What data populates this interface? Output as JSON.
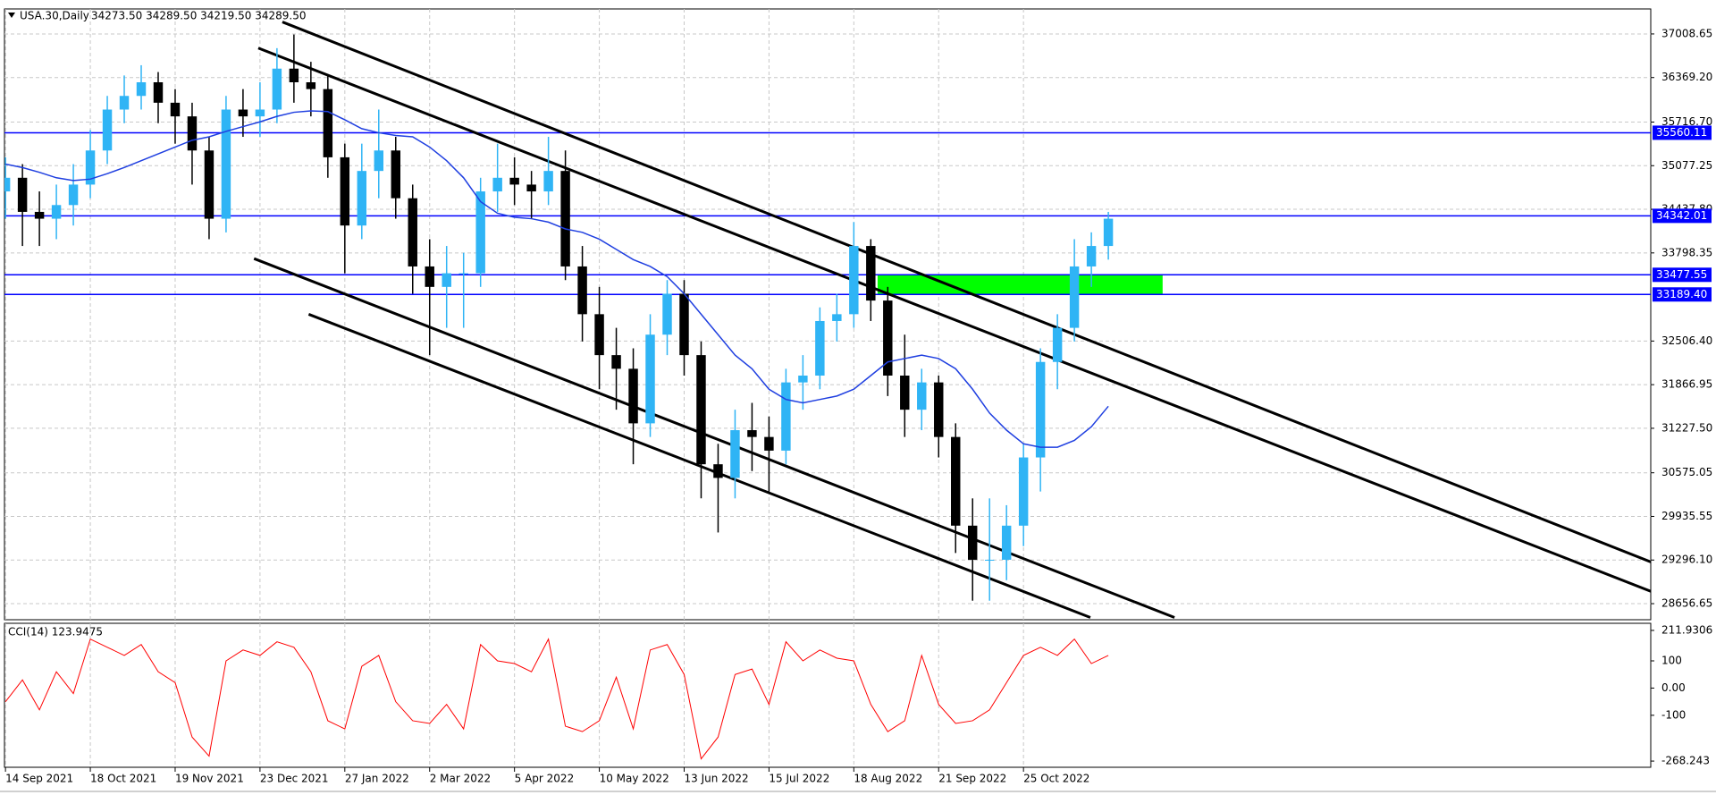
{
  "header": {
    "symbol": "USA.30,Daily",
    "ohlc": "34273.50 34289.50 34219.50 34289.50",
    "indicator": "CCI(14) 123.9475"
  },
  "chart_data": [
    {
      "type": "candlestick",
      "categories": [
        "14 Sep 2021",
        null,
        null,
        null,
        null,
        "18 Oct 2021",
        null,
        null,
        null,
        null,
        "19 Nov 2021",
        null,
        null,
        null,
        null,
        "23 Dec 2021",
        null,
        null,
        null,
        null,
        "27 Jan 2022",
        null,
        null,
        null,
        null,
        "2 Mar 2022",
        null,
        null,
        null,
        null,
        "5 Apr 2022",
        null,
        null,
        null,
        null,
        "10 May 2022",
        null,
        null,
        null,
        null,
        "13 Jun 2022",
        null,
        null,
        null,
        null,
        "15 Jul 2022",
        null,
        null,
        null,
        null,
        "18 Aug 2022",
        null,
        null,
        null,
        null,
        "21 Sep 2022",
        null,
        null,
        null,
        null,
        "25 Oct 2022",
        null,
        null,
        null,
        null,
        null
      ],
      "open": [
        34700,
        34900,
        34400,
        34300,
        34500,
        34800,
        35300,
        35900,
        36100,
        36300,
        36000,
        35800,
        35300,
        34300,
        35900,
        35800,
        35900,
        36500,
        36300,
        36200,
        35200,
        34200,
        35000,
        35300,
        34600,
        33600,
        33300,
        33500,
        33500,
        34700,
        34900,
        34800,
        34700,
        35000,
        33600,
        32900,
        32300,
        32100,
        31300,
        32600,
        33200,
        32300,
        30700,
        30500,
        31200,
        31100,
        30900,
        31900,
        32000,
        32800,
        32900,
        33900,
        33100,
        32000,
        31500,
        31900,
        31100,
        29800,
        29300,
        29300,
        29800,
        30800,
        32200,
        32700,
        33600,
        33900
      ],
      "high": [
        35200,
        35100,
        34700,
        34800,
        35100,
        35600,
        36100,
        36400,
        36550,
        36450,
        36200,
        36000,
        35500,
        36100,
        36200,
        36300,
        36800,
        37000,
        36600,
        36400,
        35400,
        35400,
        35900,
        35500,
        34800,
        34000,
        33900,
        33800,
        34900,
        35400,
        35200,
        35000,
        35500,
        35300,
        33900,
        33300,
        32700,
        32400,
        32900,
        33400,
        33400,
        32500,
        31000,
        31500,
        31600,
        31400,
        32100,
        32300,
        33000,
        33200,
        34250,
        34000,
        33300,
        32600,
        32100,
        32000,
        31300,
        30200,
        30200,
        30100,
        31000,
        32400,
        32900,
        34000,
        34100,
        34400
      ],
      "low": [
        34300,
        33900,
        33900,
        34000,
        34200,
        34600,
        35100,
        35700,
        35900,
        35700,
        35400,
        34800,
        34000,
        34100,
        35500,
        35500,
        35700,
        36000,
        35800,
        34900,
        33500,
        34000,
        34600,
        34300,
        33200,
        32300,
        32700,
        32700,
        33300,
        34400,
        34500,
        34300,
        34500,
        33400,
        32500,
        31800,
        31500,
        30700,
        31100,
        32300,
        32000,
        30200,
        29700,
        30200,
        30600,
        30300,
        30700,
        31500,
        31800,
        32500,
        32700,
        32800,
        31700,
        31100,
        31200,
        30800,
        29400,
        28700,
        28700,
        29000,
        29500,
        30300,
        31800,
        32500,
        33300,
        33700
      ],
      "close": [
        34900,
        34400,
        34300,
        34500,
        34800,
        35300,
        35900,
        36100,
        36300,
        36000,
        35800,
        35300,
        34300,
        35900,
        35800,
        35900,
        36500,
        36300,
        36200,
        35200,
        34200,
        35000,
        35300,
        34600,
        33600,
        33300,
        33500,
        33500,
        34700,
        34900,
        34800,
        34700,
        35000,
        33600,
        32900,
        32300,
        32100,
        31300,
        32600,
        33200,
        32300,
        30700,
        30500,
        31200,
        31100,
        30900,
        31900,
        32000,
        32800,
        32900,
        33900,
        33100,
        32000,
        31500,
        31900,
        31100,
        29800,
        29300,
        29300,
        29800,
        30800,
        32200,
        32700,
        33600,
        33900,
        34300
      ],
      "up_color": "#2fb4f5",
      "down_color": "#000000",
      "ma": [
        35100,
        35050,
        34980,
        34900,
        34860,
        34880,
        34960,
        35050,
        35150,
        35250,
        35350,
        35450,
        35500,
        35580,
        35650,
        35720,
        35800,
        35860,
        35880,
        35870,
        35750,
        35620,
        35560,
        35520,
        35500,
        35350,
        35150,
        34900,
        34550,
        34380,
        34320,
        34300,
        34250,
        34150,
        34100,
        34000,
        33850,
        33700,
        33600,
        33450,
        33200,
        32900,
        32600,
        32300,
        32100,
        31800,
        31650,
        31600,
        31650,
        31700,
        31800,
        32000,
        32200,
        32250,
        32300,
        32250,
        32100,
        31800,
        31450,
        31200,
        31000,
        30950,
        30950,
        31050,
        31250,
        31550
      ],
      "ma_color": "#1f3fe0",
      "trendlines": [
        {
          "x": [
            16.32,
            96.97
          ],
          "y": [
            37184,
            29269
          ]
        },
        {
          "x": [
            14.9,
            96.97
          ],
          "y": [
            36801,
            28838
          ]
        },
        {
          "x": [
            14.65,
            68.9
          ],
          "y": [
            33715,
            28454
          ]
        },
        {
          "x": [
            17.87,
            63.94
          ],
          "y": [
            32899,
            28454
          ]
        }
      ],
      "zones": [
        {
          "x": [
            51.4,
            68.2
          ],
          "y": [
            33189.4,
            33477.55
          ],
          "color": "#00ff00"
        }
      ],
      "hlines": [
        35560.11,
        34342.01,
        33477.55,
        {
          "value": 33189.4,
          "label": "33189.40"
        }
      ],
      "hline_color": "#0000ff",
      "xlim": [
        -0.06,
        96.97
      ],
      "ylim": [
        28421,
        37375
      ],
      "yticks": [
        37008.65,
        {
          "value": 36369.2,
          "label": "36369.20"
        },
        {
          "value": 35716.7,
          "label": "35716.70"
        },
        35077.25,
        {
          "value": 34437.8,
          "label": "34437.80"
        },
        33798.35,
        {
          "value": 32506.4,
          "label": "32506.40"
        },
        31866.95,
        {
          "value": 31227.5,
          "label": "31227.50"
        },
        30575.05,
        29935.55,
        {
          "value": 29296.1,
          "label": "29296.10"
        },
        28656.65
      ],
      "grid": true
    },
    {
      "type": "line",
      "values": [
        -50,
        30,
        -80,
        60,
        -20,
        180,
        150,
        120,
        160,
        60,
        20,
        -180,
        -250,
        100,
        140,
        120,
        170,
        150,
        60,
        -120,
        -150,
        80,
        120,
        -50,
        -120,
        -130,
        -60,
        -150,
        160,
        100,
        90,
        60,
        180,
        -140,
        -160,
        -120,
        40,
        -150,
        140,
        160,
        50,
        -260,
        -180,
        50,
        70,
        -60,
        170,
        100,
        140,
        110,
        100,
        -60,
        -160,
        -120,
        120,
        -60,
        -130,
        -120,
        -80,
        20,
        120,
        150,
        120,
        180,
        90,
        120
      ],
      "color": "#ff0000",
      "xlim": [
        -0.06,
        96.97
      ],
      "ylim": [
        -291,
        238
      ],
      "yticks": [
        211.9306,
        100,
        {
          "value": 0,
          "label": "0.00"
        },
        -100,
        -268.243
      ]
    }
  ]
}
